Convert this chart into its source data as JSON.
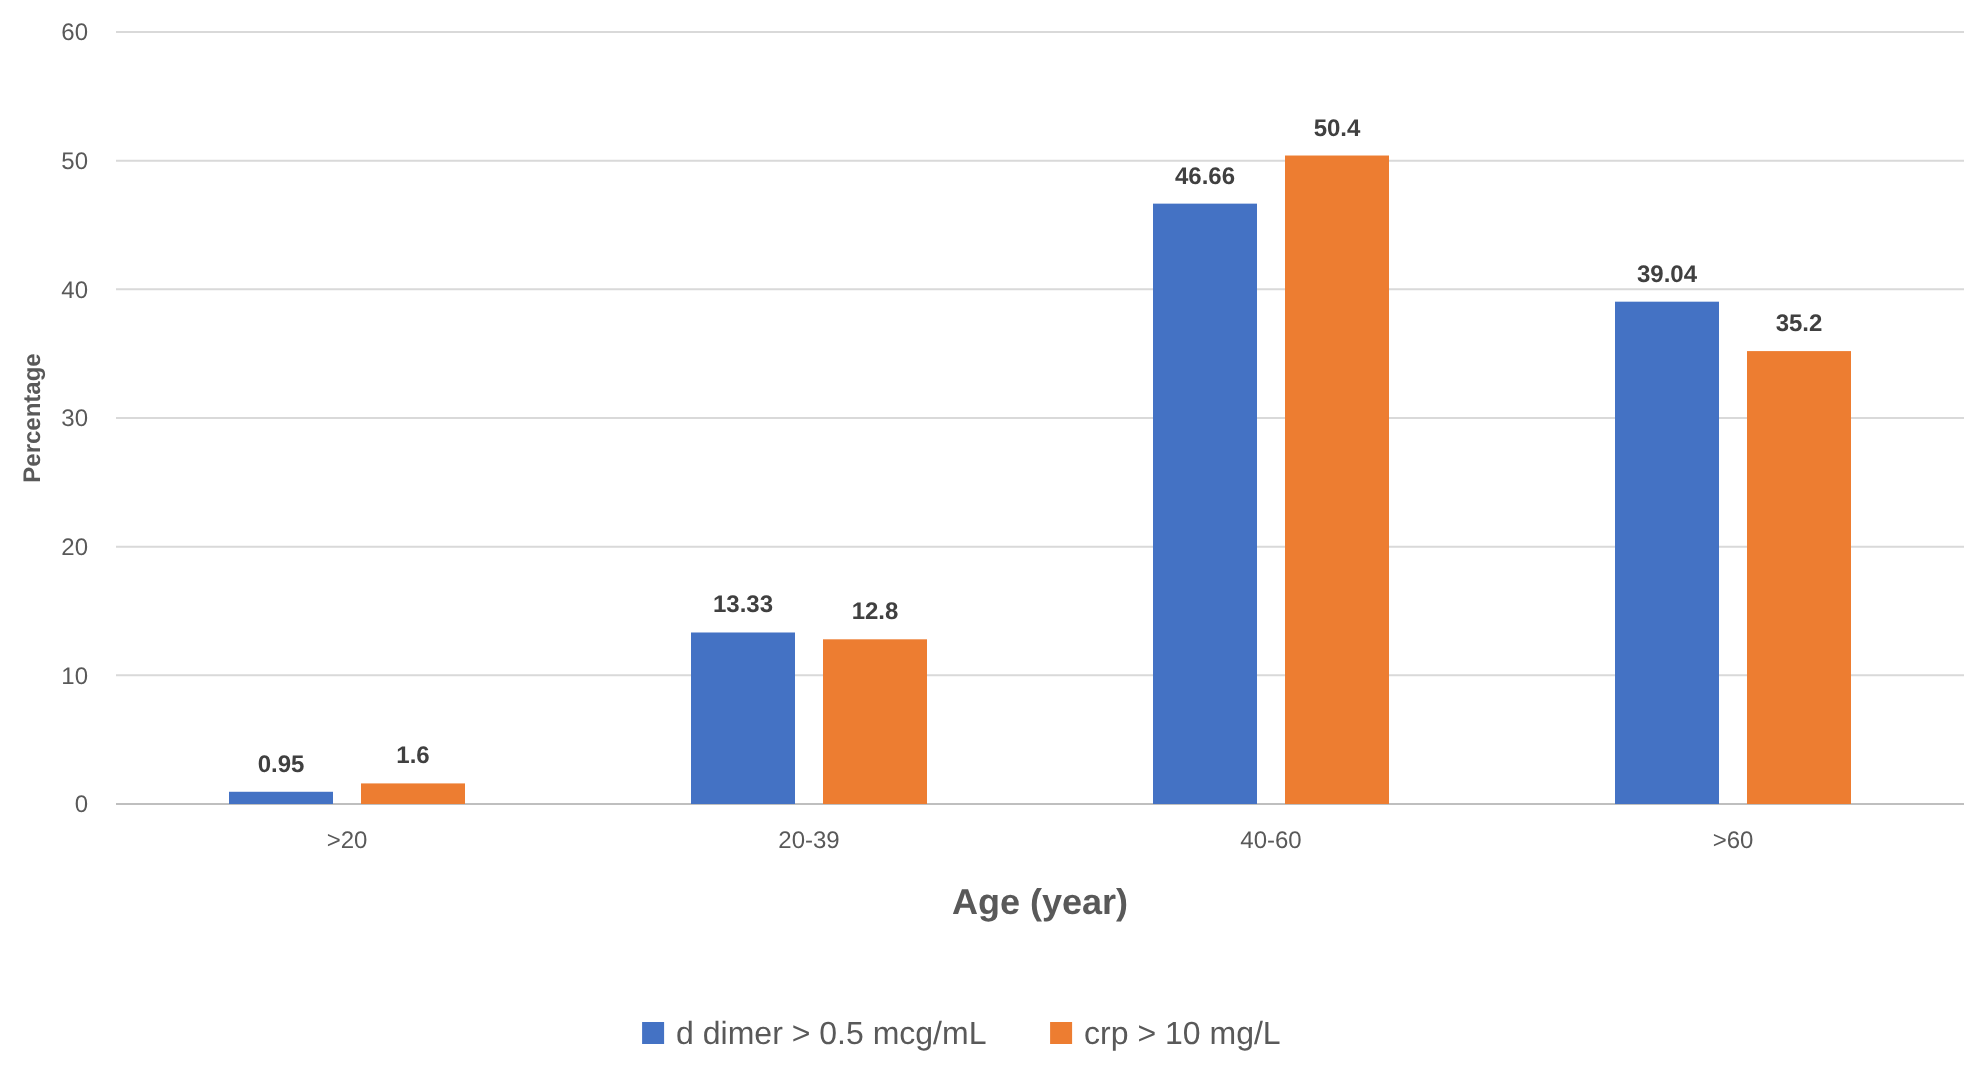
{
  "chart_data": {
    "type": "bar",
    "xlabel": "Age (year)",
    "ylabel": "Percentage",
    "categories": [
      ">20",
      "20-39",
      "40-60",
      ">60"
    ],
    "series": [
      {
        "name": "d dimer > 0.5 mcg/mL",
        "color": "#4472c4",
        "values": [
          0.95,
          13.33,
          46.66,
          39.04
        ]
      },
      {
        "name": "crp > 10 mg/L",
        "color": "#ed7d31",
        "values": [
          1.6,
          12.8,
          50.4,
          35.2
        ]
      }
    ],
    "ylim": [
      0,
      60
    ],
    "yticks": [
      0,
      10,
      20,
      30,
      40,
      50,
      60
    ],
    "grid": "y",
    "legend": "bottom",
    "data_labels": true
  }
}
